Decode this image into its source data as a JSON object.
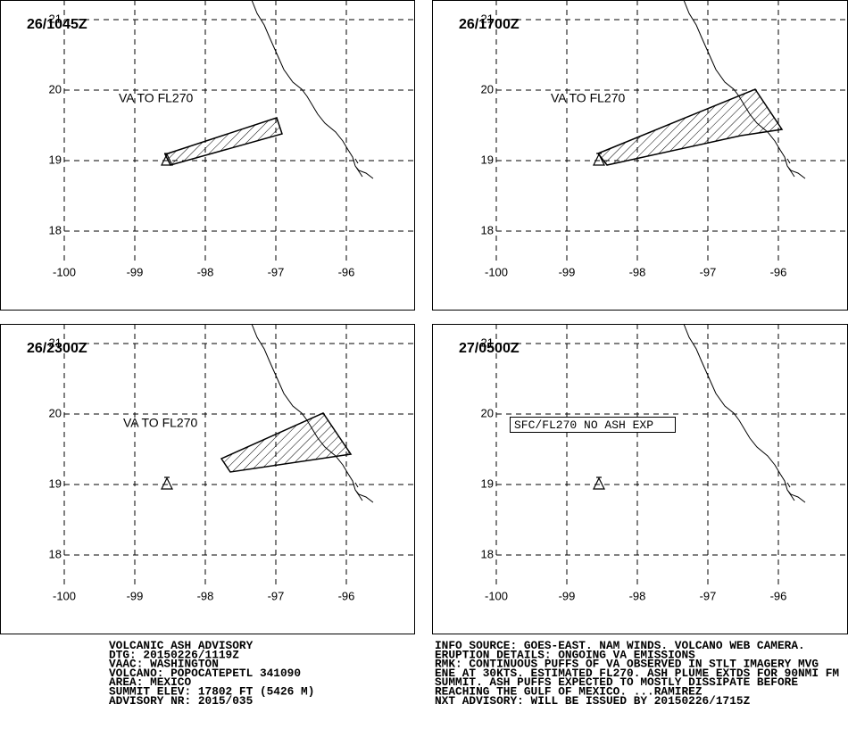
{
  "panels": [
    {
      "time": "26/1045Z",
      "label": "VA TO FL270"
    },
    {
      "time": "26/1700Z",
      "label": "VA TO FL270"
    },
    {
      "time": "26/2300Z",
      "label": "VA TO FL270"
    },
    {
      "time": "27/0500Z",
      "label": "SFC/FL270 NO ASH EXP"
    }
  ],
  "lon_ticks": [
    -100,
    -99,
    -98,
    -97,
    -96
  ],
  "lat_ticks": [
    18,
    19,
    20,
    21
  ],
  "advisory": {
    "left": [
      "VOLCANIC ASH ADVISORY",
      "DTG: 20150226/1119Z",
      "VAAC: WASHINGTON",
      "VOLCANO: POPOCATEPETL 341090",
      "AREA: MEXICO",
      "SUMMIT ELEV: 17802 FT (5426 M)",
      "ADVISORY NR: 2015/035"
    ],
    "right": [
      "INFO SOURCE: GOES-EAST. NAM WINDS. VOLCANO WEB CAMERA.",
      "ERUPTION DETAILS: ONGOING VA EMISSIONS",
      "RMK: CONTINUOUS PUFFS OF VA OBSERVED IN STLT IMAGERY MVG",
      "ENE AT 30KTS. ESTIMATED FL270. ASH PLUME EXTDS FOR 90NMI FM",
      "SUMMIT. ASH PUFFS EXPECTED TO MOSTLY DISSIPATE BEFORE",
      "REACHING THE GULF OF MEXICO. ...RAMIREZ",
      "NXT ADVISORY: WILL BE ISSUED BY 20150226/1715Z"
    ]
  }
}
